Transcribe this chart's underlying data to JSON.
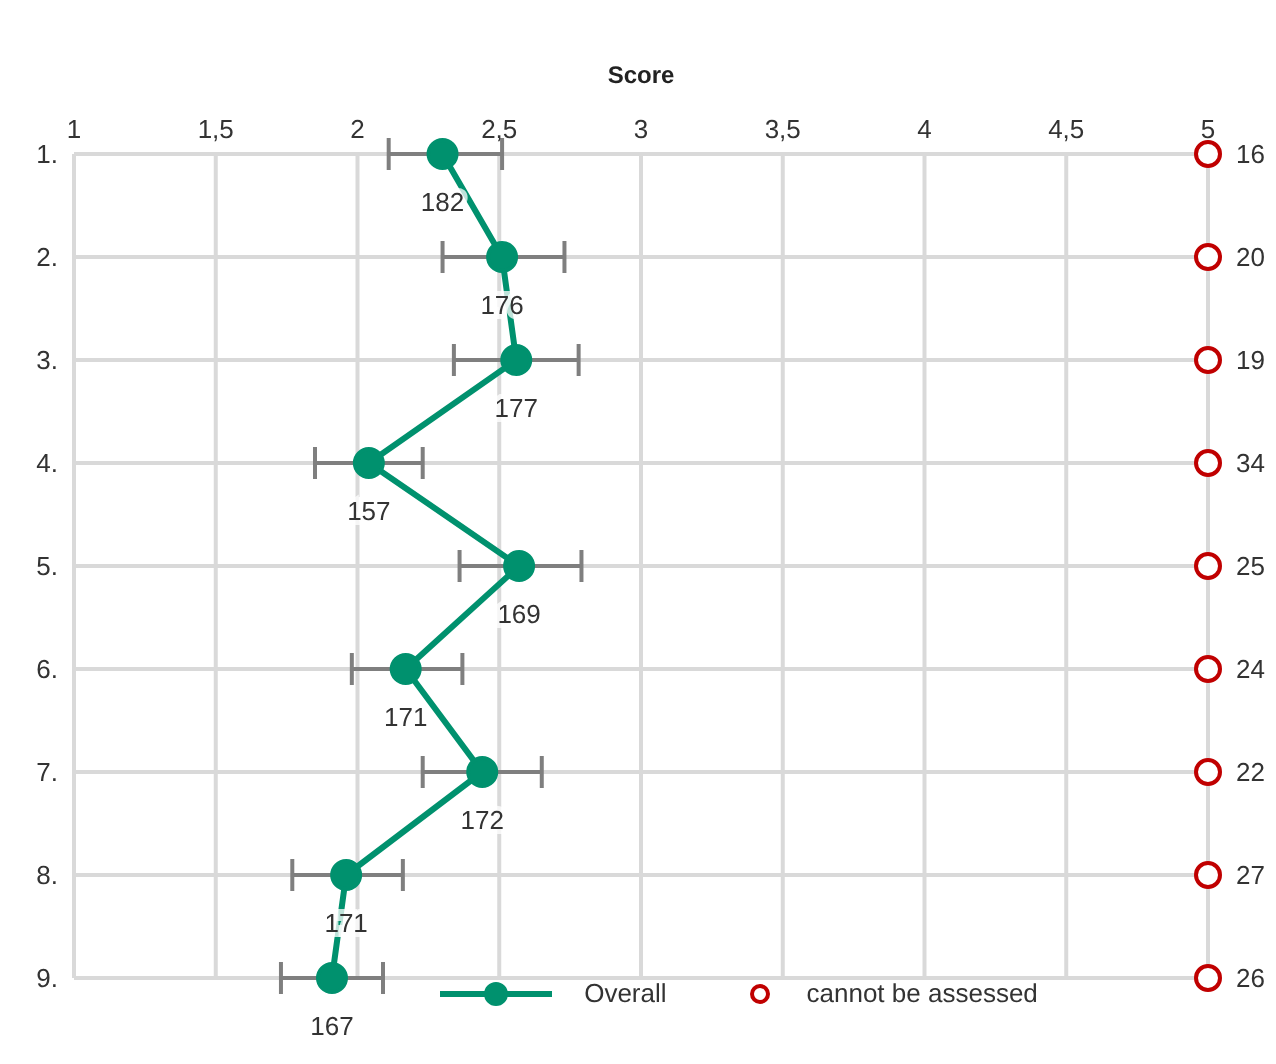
{
  "chart_data": {
    "type": "line",
    "orientation": "horizontal",
    "xlabel": "Score",
    "categories": [
      "1.",
      "2.",
      "3.",
      "4.",
      "5.",
      "6.",
      "7.",
      "8.",
      "9."
    ],
    "xlim": [
      1,
      5
    ],
    "xticks": [
      1,
      {
        "value": 1.5,
        "label": "1,5"
      },
      2,
      {
        "value": 2.5,
        "label": "2,5"
      },
      3,
      {
        "value": 3.5,
        "label": "3,5"
      },
      4,
      {
        "value": 4.5,
        "label": "4,5"
      },
      5
    ],
    "grid": true,
    "legend": "bottom",
    "series": [
      {
        "name": "Overall",
        "color": "#00916e",
        "marker": "circle",
        "line_style": "solid",
        "values": [
          2.3,
          2.51,
          2.56,
          2.04,
          2.57,
          2.17,
          2.44,
          1.96,
          1.91
        ],
        "errors": [
          [
            2.11,
            2.51
          ],
          [
            2.3,
            2.73
          ],
          [
            2.34,
            2.78
          ],
          [
            1.85,
            2.23
          ],
          [
            2.36,
            2.79
          ],
          [
            1.98,
            2.37
          ],
          [
            2.23,
            2.65
          ],
          [
            1.77,
            2.16
          ],
          [
            1.73,
            2.09
          ]
        ]
      },
      {
        "name": "cannot be assessed",
        "type": "scatter",
        "color": "#c00000",
        "marker": "circle",
        "values": [
          5,
          5,
          5,
          5,
          5,
          5,
          5,
          5,
          5
        ]
      }
    ],
    "annotations": [
      {
        "text": "182",
        "x": 2.3,
        "y": "1."
      },
      {
        "text": "176",
        "x": 2.51,
        "y": "2."
      },
      {
        "text": "177",
        "x": 2.56,
        "y": "3."
      },
      {
        "text": "157",
        "x": 2.04,
        "y": "4."
      },
      {
        "text": "169",
        "x": 2.57,
        "y": "5."
      },
      {
        "text": "171",
        "x": 2.17,
        "y": "6."
      },
      {
        "text": "172",
        "x": 2.44,
        "y": "7."
      },
      {
        "text": "171",
        "x": 1.96,
        "y": "8."
      },
      {
        "text": "167",
        "x": 1.91,
        "y": "9."
      },
      {
        "text": "16",
        "x": 5,
        "y": "1."
      },
      {
        "text": "20",
        "x": 5,
        "y": "2."
      },
      {
        "text": "19",
        "x": 5,
        "y": "3."
      },
      {
        "text": "34",
        "x": 5,
        "y": "4."
      },
      {
        "text": "25",
        "x": 5,
        "y": "5."
      },
      {
        "text": "24",
        "x": 5,
        "y": "6."
      },
      {
        "text": "22",
        "x": 5,
        "y": "7."
      },
      {
        "text": "27",
        "x": 5,
        "y": "8."
      },
      {
        "text": "26",
        "x": 5,
        "y": "9."
      }
    ]
  }
}
